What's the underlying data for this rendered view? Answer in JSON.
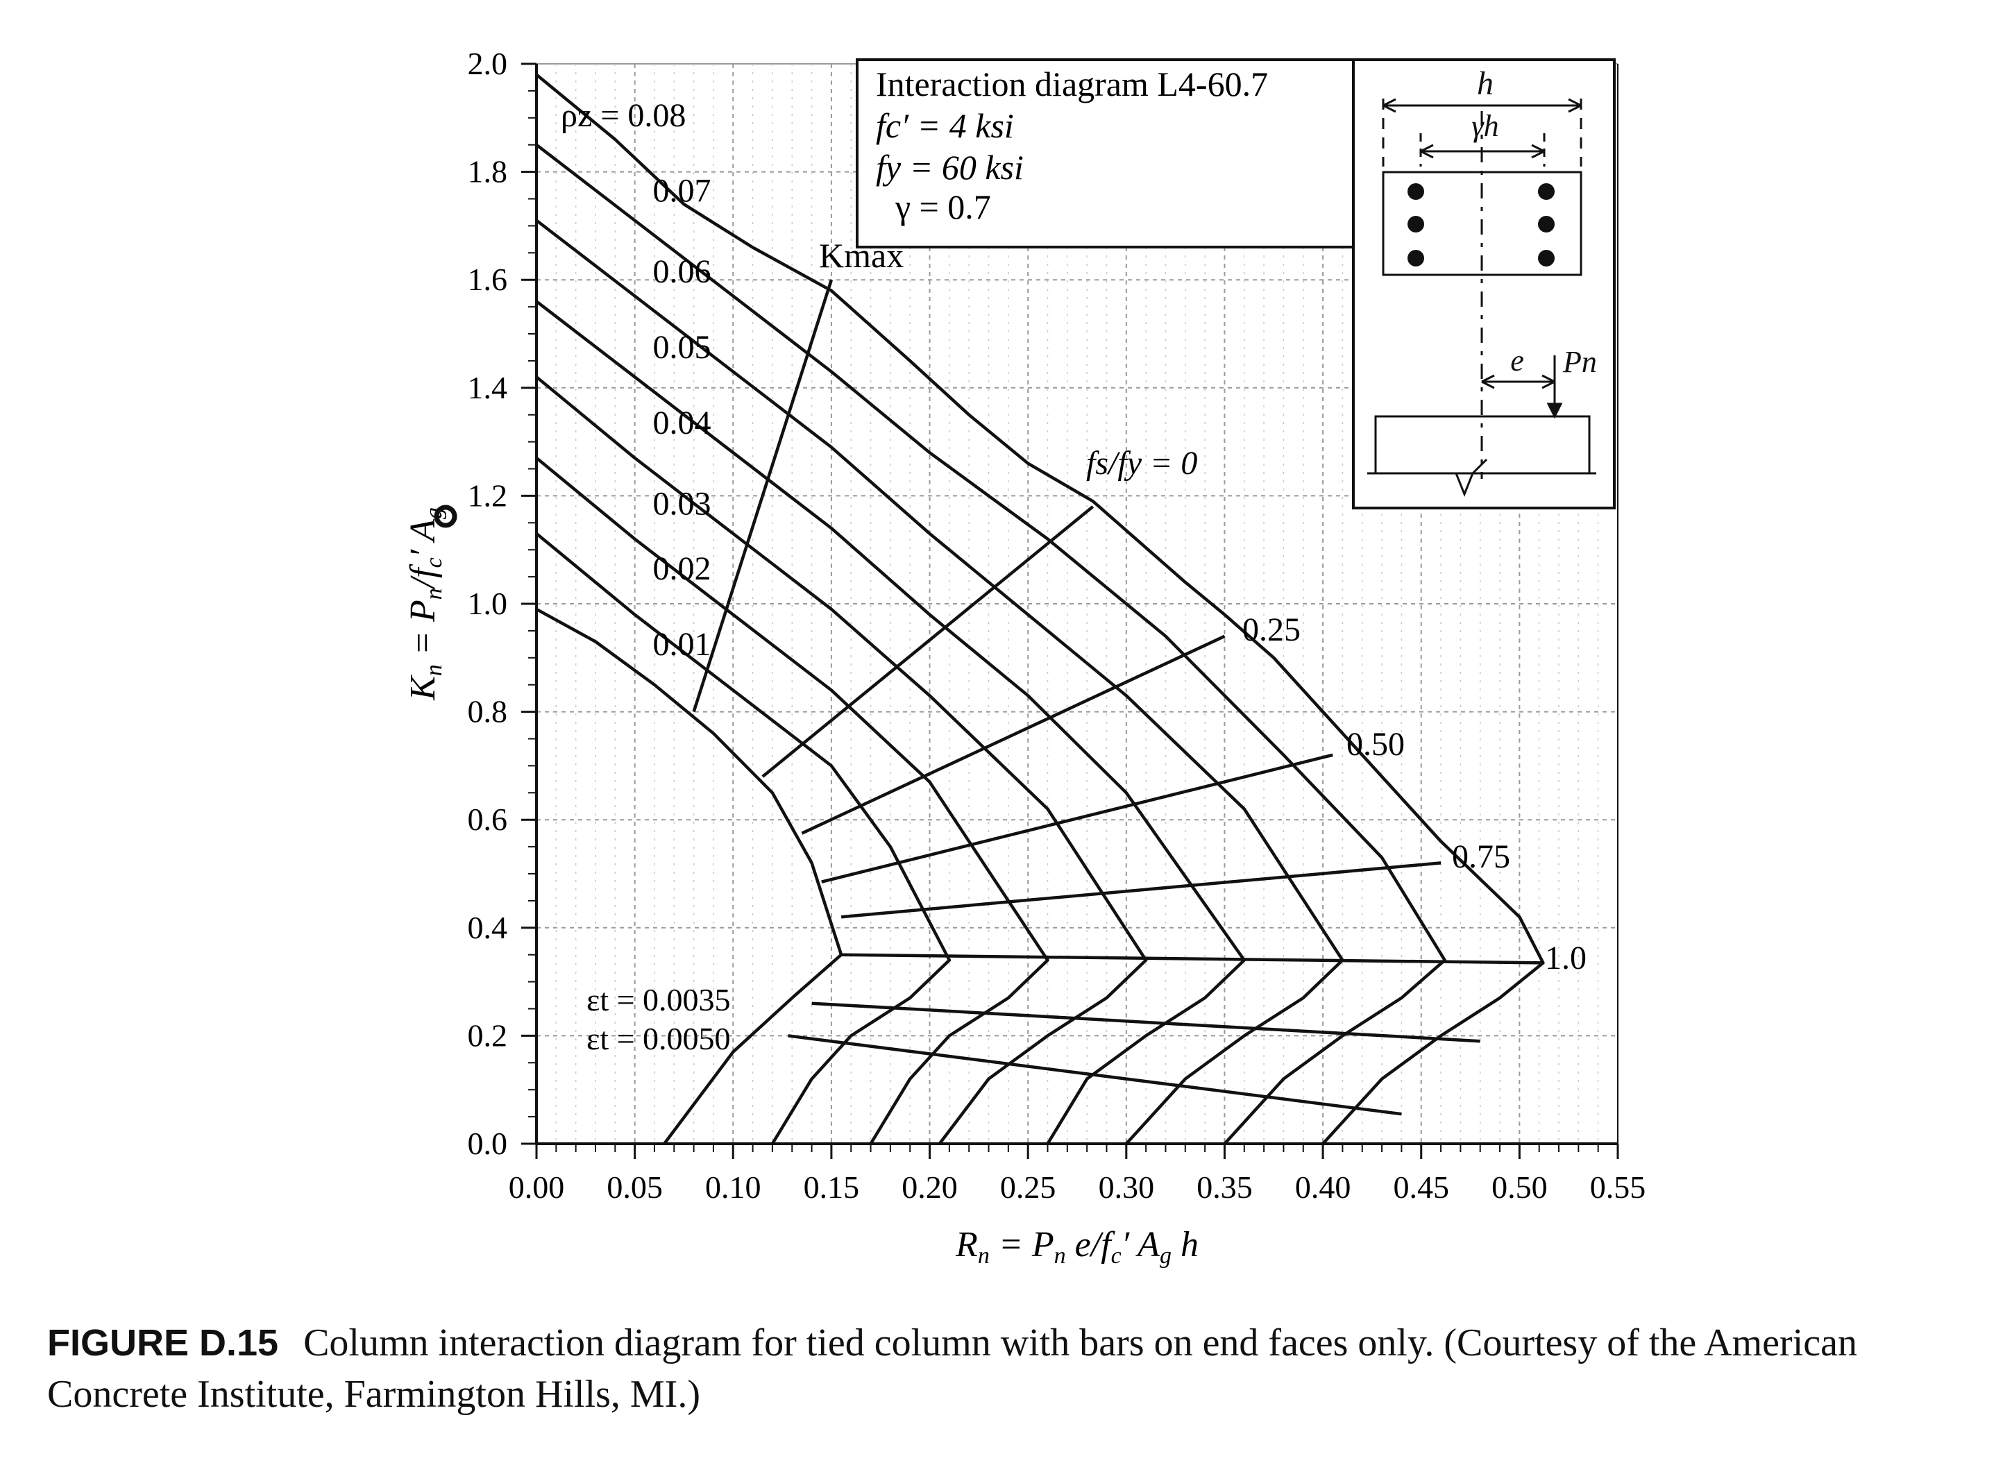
{
  "chart_data": {
    "type": "line",
    "xlabel": "R_n = P_n e/f_c' A_g h",
    "ylabel": "K_n = P_n/f_c' A_g",
    "xlim": [
      0.0,
      0.55
    ],
    "ylim": [
      0.0,
      2.0
    ],
    "x_ticks": [
      "0.00",
      "0.05",
      "0.10",
      "0.15",
      "0.20",
      "0.25",
      "0.30",
      "0.35",
      "0.40",
      "0.45",
      "0.50",
      "0.55"
    ],
    "y_ticks": [
      "0.0",
      "0.2",
      "0.4",
      "0.6",
      "0.8",
      "1.0",
      "1.2",
      "1.4",
      "1.6",
      "1.8",
      "2.0"
    ],
    "grid": true,
    "series": [
      {
        "name": "0.08",
        "points": [
          [
            0.0,
            1.98
          ],
          [
            0.04,
            1.86
          ],
          [
            0.075,
            1.74
          ],
          [
            0.11,
            1.66
          ],
          [
            0.15,
            1.58
          ],
          [
            0.19,
            1.45
          ],
          [
            0.22,
            1.35
          ],
          [
            0.25,
            1.26
          ],
          [
            0.283,
            1.19
          ],
          [
            0.33,
            1.04
          ],
          [
            0.35,
            0.98
          ],
          [
            0.375,
            0.9
          ],
          [
            0.42,
            0.72
          ],
          [
            0.46,
            0.56
          ],
          [
            0.5,
            0.42
          ],
          [
            0.512,
            0.335
          ],
          [
            0.49,
            0.27
          ],
          [
            0.46,
            0.2
          ],
          [
            0.43,
            0.12
          ],
          [
            0.4,
            0.0
          ]
        ]
      },
      {
        "name": "0.07",
        "points": [
          [
            0.0,
            1.85
          ],
          [
            0.05,
            1.71
          ],
          [
            0.1,
            1.57
          ],
          [
            0.15,
            1.43
          ],
          [
            0.2,
            1.28
          ],
          [
            0.26,
            1.12
          ],
          [
            0.32,
            0.94
          ],
          [
            0.38,
            0.72
          ],
          [
            0.43,
            0.53
          ],
          [
            0.462,
            0.34
          ],
          [
            0.44,
            0.27
          ],
          [
            0.41,
            0.2
          ],
          [
            0.38,
            0.12
          ],
          [
            0.35,
            0.0
          ]
        ]
      },
      {
        "name": "0.06",
        "points": [
          [
            0.0,
            1.71
          ],
          [
            0.05,
            1.57
          ],
          [
            0.1,
            1.43
          ],
          [
            0.15,
            1.29
          ],
          [
            0.2,
            1.13
          ],
          [
            0.25,
            0.98
          ],
          [
            0.3,
            0.83
          ],
          [
            0.36,
            0.62
          ],
          [
            0.41,
            0.34
          ],
          [
            0.39,
            0.27
          ],
          [
            0.36,
            0.2
          ],
          [
            0.33,
            0.12
          ],
          [
            0.3,
            0.0
          ]
        ]
      },
      {
        "name": "0.05",
        "points": [
          [
            0.0,
            1.56
          ],
          [
            0.05,
            1.42
          ],
          [
            0.1,
            1.28
          ],
          [
            0.15,
            1.14
          ],
          [
            0.2,
            0.98
          ],
          [
            0.25,
            0.83
          ],
          [
            0.3,
            0.65
          ],
          [
            0.36,
            0.34
          ],
          [
            0.34,
            0.27
          ],
          [
            0.31,
            0.2
          ],
          [
            0.28,
            0.12
          ],
          [
            0.26,
            0.0
          ]
        ]
      },
      {
        "name": "0.04",
        "points": [
          [
            0.0,
            1.42
          ],
          [
            0.05,
            1.27
          ],
          [
            0.1,
            1.13
          ],
          [
            0.15,
            0.99
          ],
          [
            0.2,
            0.83
          ],
          [
            0.26,
            0.62
          ],
          [
            0.31,
            0.34
          ],
          [
            0.29,
            0.27
          ],
          [
            0.26,
            0.2
          ],
          [
            0.23,
            0.12
          ],
          [
            0.205,
            0.0
          ]
        ]
      },
      {
        "name": "0.03",
        "points": [
          [
            0.0,
            1.27
          ],
          [
            0.05,
            1.12
          ],
          [
            0.1,
            0.98
          ],
          [
            0.15,
            0.84
          ],
          [
            0.2,
            0.67
          ],
          [
            0.26,
            0.34
          ],
          [
            0.24,
            0.27
          ],
          [
            0.21,
            0.2
          ],
          [
            0.19,
            0.12
          ],
          [
            0.17,
            0.0
          ]
        ]
      },
      {
        "name": "0.02",
        "points": [
          [
            0.0,
            1.13
          ],
          [
            0.05,
            0.98
          ],
          [
            0.1,
            0.84
          ],
          [
            0.15,
            0.7
          ],
          [
            0.18,
            0.55
          ],
          [
            0.21,
            0.34
          ],
          [
            0.19,
            0.27
          ],
          [
            0.16,
            0.2
          ],
          [
            0.14,
            0.12
          ],
          [
            0.12,
            0.0
          ]
        ]
      },
      {
        "name": "0.01",
        "points": [
          [
            0.0,
            0.99
          ],
          [
            0.03,
            0.93
          ],
          [
            0.06,
            0.85
          ],
          [
            0.09,
            0.76
          ],
          [
            0.12,
            0.65
          ],
          [
            0.14,
            0.52
          ],
          [
            0.155,
            0.35
          ],
          [
            0.13,
            0.27
          ],
          [
            0.1,
            0.17
          ],
          [
            0.065,
            0.0
          ]
        ]
      }
    ],
    "guide_lines": [
      {
        "name": "K_max",
        "points": [
          [
            0.08,
            0.8
          ],
          [
            0.15,
            1.6
          ]
        ]
      },
      {
        "name": "0",
        "points": [
          [
            0.115,
            0.68
          ],
          [
            0.283,
            1.18
          ]
        ]
      },
      {
        "name": "0.25",
        "points": [
          [
            0.135,
            0.575
          ],
          [
            0.35,
            0.94
          ]
        ]
      },
      {
        "name": "0.50",
        "points": [
          [
            0.145,
            0.485
          ],
          [
            0.405,
            0.72
          ]
        ]
      },
      {
        "name": "0.75",
        "points": [
          [
            0.155,
            0.42
          ],
          [
            0.46,
            0.52
          ]
        ]
      },
      {
        "name": "1.0",
        "points": [
          [
            0.155,
            0.35
          ],
          [
            0.512,
            0.335
          ]
        ]
      },
      {
        "name": "0.0035",
        "points": [
          [
            0.14,
            0.26
          ],
          [
            0.48,
            0.19
          ]
        ]
      },
      {
        "name": "0.0050",
        "points": [
          [
            0.128,
            0.2
          ],
          [
            0.44,
            0.055
          ]
        ]
      }
    ],
    "annotations": {
      "rho_label": "ρz = 0.08",
      "kmax_label": "Kmax",
      "fsfy_label": "fs/fy = 0",
      "fsfy_values": [
        "0.25",
        "0.50",
        "0.75",
        "1.0"
      ],
      "eps_label_1": "εt = 0.0035",
      "eps_label_2": "εt = 0.0050"
    },
    "info_box": [
      "Interaction diagram L4-60.7",
      "fc′ = 4 ksi",
      "fy = 60 ksi",
      "γ = 0.7"
    ],
    "inset": {
      "h_label": "h",
      "gamma_h_label": "γh",
      "e_label": "e",
      "pn_label": "Pn"
    }
  },
  "caption": {
    "label": "FIGURE D.15",
    "text": "Column interaction diagram for tied column with bars on end faces only. (Courtesy of the American Concrete Institute, Farmington Hills, MI.)"
  }
}
